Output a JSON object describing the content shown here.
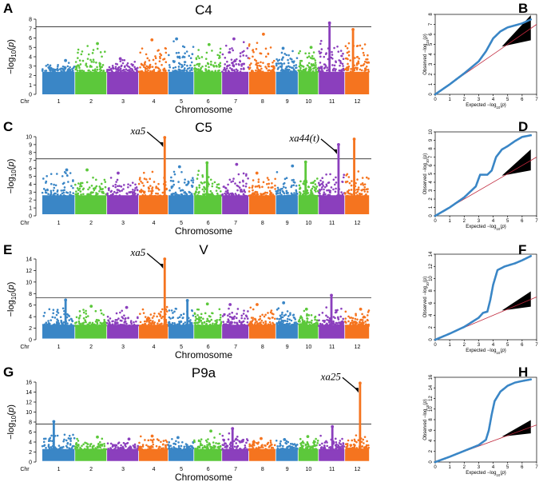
{
  "colors": {
    "chromosomes": [
      "#3a86c6",
      "#5cc83b",
      "#8b3fbd",
      "#f5741f",
      "#3a86c6",
      "#5cc83b",
      "#8b3fbd",
      "#f5741f",
      "#3a86c6",
      "#5cc83b",
      "#8b3fbd",
      "#f5741f"
    ],
    "qq_points": "#3a86c6",
    "qq_line": "#c0283c",
    "qq_band": "#000000",
    "threshold": "#000000"
  },
  "chart_data": [
    {
      "type": "scatter",
      "kind": "manhattan",
      "panel": "A",
      "title": "C4",
      "xlabel": "Chromosome",
      "ylabel": "−log10(p)",
      "x_start_label": "Chr",
      "chromosomes": [
        "1",
        "2",
        "3",
        "4",
        "5",
        "6",
        "7",
        "8",
        "9",
        "10",
        "11",
        "12"
      ],
      "ylim": [
        0,
        8
      ],
      "yticks": [
        0,
        1,
        2,
        3,
        4,
        5,
        6,
        7,
        8
      ],
      "threshold": 7.2,
      "peaks": [
        3.6,
        5.4,
        3.8,
        5.8,
        5.9,
        5.3,
        5.9,
        6.4,
        4.9,
        5.0,
        7.6,
        6.9
      ],
      "annotations": []
    },
    {
      "type": "scatter",
      "kind": "qq",
      "panel": "B",
      "xlabel": "Expected −log10(p)",
      "ylabel": "Observed −log10(p)",
      "xlim": [
        0,
        7
      ],
      "ylim": [
        0,
        8
      ],
      "xticks": [
        0,
        1,
        2,
        3,
        4,
        5,
        6,
        7
      ],
      "yticks": [
        0,
        1,
        2,
        3,
        4,
        5,
        6,
        7,
        8
      ],
      "curve": [
        [
          0,
          0
        ],
        [
          1,
          1
        ],
        [
          2,
          2.1
        ],
        [
          3,
          3.3
        ],
        [
          3.5,
          4.3
        ],
        [
          4,
          5.6
        ],
        [
          4.5,
          6.3
        ],
        [
          5,
          6.7
        ],
        [
          6,
          7.1
        ],
        [
          6.6,
          7.5
        ]
      ]
    },
    {
      "type": "scatter",
      "kind": "manhattan",
      "panel": "C",
      "title": "C5",
      "xlabel": "Chromosome",
      "ylabel": "−log10(p)",
      "x_start_label": "Chr",
      "chromosomes": [
        "1",
        "2",
        "3",
        "4",
        "5",
        "6",
        "7",
        "8",
        "9",
        "10",
        "11",
        "12"
      ],
      "ylim": [
        0,
        10
      ],
      "yticks": [
        0,
        1,
        2,
        3,
        4,
        5,
        6,
        7,
        8,
        9,
        10
      ],
      "threshold": 7.2,
      "peaks": [
        5.8,
        5.8,
        5.4,
        9.9,
        6.2,
        6.7,
        6.5,
        5.4,
        6.3,
        6.8,
        9.0,
        9.7
      ],
      "annotations": [
        {
          "label": "xa5",
          "chrom": 4,
          "pos": 0.92,
          "y": 9.9
        },
        {
          "label": "xa44(t)",
          "chrom": 11,
          "pos": 0.8,
          "y": 9.0
        }
      ]
    },
    {
      "type": "scatter",
      "kind": "qq",
      "panel": "D",
      "xlabel": "Expected −log10(p)",
      "ylabel": "Observed −log10(p)",
      "xlim": [
        0,
        7
      ],
      "ylim": [
        0,
        10
      ],
      "xticks": [
        0,
        1,
        2,
        3,
        4,
        5,
        6,
        7
      ],
      "yticks": [
        0,
        1,
        2,
        3,
        4,
        5,
        6,
        7,
        8,
        9,
        10
      ],
      "curve": [
        [
          0,
          0
        ],
        [
          1,
          1
        ],
        [
          2,
          2.2
        ],
        [
          2.8,
          3.5
        ],
        [
          3.1,
          4.9
        ],
        [
          3.6,
          4.9
        ],
        [
          3.9,
          5.4
        ],
        [
          4.2,
          7
        ],
        [
          4.6,
          7.9
        ],
        [
          5,
          8.3
        ],
        [
          5.5,
          8.9
        ],
        [
          6,
          9.4
        ],
        [
          6.6,
          9.6
        ]
      ]
    },
    {
      "type": "scatter",
      "kind": "manhattan",
      "panel": "E",
      "title": "V",
      "xlabel": "Chromosome",
      "ylabel": "−log10(p)",
      "x_start_label": "Chr",
      "chromosomes": [
        "1",
        "2",
        "3",
        "4",
        "5",
        "6",
        "7",
        "8",
        "9",
        "10",
        "11",
        "12"
      ],
      "ylim": [
        0,
        14
      ],
      "yticks": [
        0,
        2,
        4,
        6,
        8,
        10,
        12,
        14
      ],
      "threshold": 7.3,
      "peaks": [
        6.9,
        5.8,
        5.6,
        14.0,
        6.8,
        6.2,
        6.1,
        6.1,
        6.4,
        5.3,
        7.7,
        5.3
      ],
      "annotations": [
        {
          "label": "xa5",
          "chrom": 4,
          "pos": 0.92,
          "y": 14.0
        }
      ]
    },
    {
      "type": "scatter",
      "kind": "qq",
      "panel": "F",
      "xlabel": "Expected −log10(p)",
      "ylabel": "Observed −log10(p)",
      "xlim": [
        0,
        7
      ],
      "ylim": [
        0,
        14
      ],
      "xticks": [
        0,
        1,
        2,
        3,
        4,
        5,
        6,
        7
      ],
      "yticks": [
        0,
        2,
        4,
        6,
        8,
        10,
        12,
        14
      ],
      "curve": [
        [
          0,
          0
        ],
        [
          1,
          1
        ],
        [
          2,
          2.1
        ],
        [
          3,
          3.6
        ],
        [
          3.3,
          4.4
        ],
        [
          3.6,
          4.6
        ],
        [
          3.8,
          6.5
        ],
        [
          4,
          9
        ],
        [
          4.3,
          11.4
        ],
        [
          4.8,
          12
        ],
        [
          5.5,
          12.5
        ],
        [
          6,
          13
        ],
        [
          6.6,
          13.7
        ]
      ]
    },
    {
      "type": "scatter",
      "kind": "manhattan",
      "panel": "G",
      "title": "P9a",
      "xlabel": "Chromosome",
      "ylabel": "−log10(p)",
      "x_start_label": "Chr",
      "chromosomes": [
        "1",
        "2",
        "3",
        "4",
        "5",
        "6",
        "7",
        "8",
        "9",
        "10",
        "11",
        "12"
      ],
      "ylim": [
        0,
        16
      ],
      "yticks": [
        0,
        2,
        4,
        6,
        8,
        10,
        12,
        14,
        16
      ],
      "threshold": 7.6,
      "peaks": [
        8.1,
        5.0,
        4.6,
        5.2,
        4.9,
        6.2,
        6.7,
        4.7,
        4.5,
        5.1,
        7.1,
        15.8
      ],
      "annotations": [
        {
          "label": "xa25",
          "chrom": 12,
          "pos": 0.65,
          "y": 15.8
        }
      ]
    },
    {
      "type": "scatter",
      "kind": "qq",
      "panel": "H",
      "xlabel": "Expected −log10(p)",
      "ylabel": "Observed −log10(p)",
      "xlim": [
        0,
        7
      ],
      "ylim": [
        0,
        16
      ],
      "xticks": [
        0,
        1,
        2,
        3,
        4,
        5,
        6,
        7
      ],
      "yticks": [
        0,
        2,
        4,
        6,
        8,
        10,
        12,
        14,
        16
      ],
      "curve": [
        [
          0,
          0
        ],
        [
          1,
          1
        ],
        [
          2,
          2.1
        ],
        [
          3,
          3.2
        ],
        [
          3.5,
          4.2
        ],
        [
          3.7,
          6
        ],
        [
          3.9,
          9
        ],
        [
          4.1,
          11.5
        ],
        [
          4.5,
          13.3
        ],
        [
          5,
          14.4
        ],
        [
          5.5,
          15
        ],
        [
          6,
          15.3
        ],
        [
          6.6,
          15.6
        ]
      ]
    }
  ]
}
